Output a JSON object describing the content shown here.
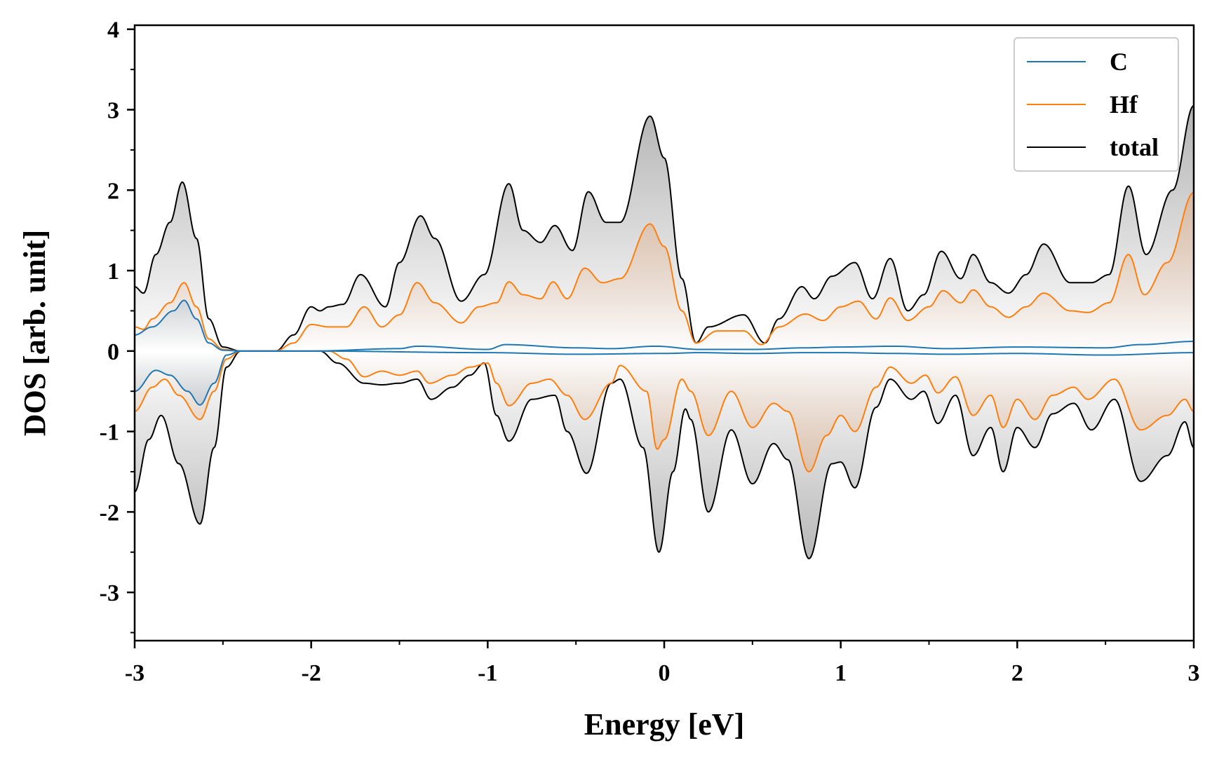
{
  "chart_data": {
    "type": "line",
    "xlabel": "Energy [eV]",
    "ylabel": "DOS [arb. unit]",
    "xlim": [
      -3,
      3
    ],
    "ylim": [
      -3.6,
      4.05
    ],
    "xticks": [
      -3,
      -2,
      -1,
      0,
      1,
      2,
      3
    ],
    "xtick_labels": [
      "-3",
      "-2",
      "-1",
      "0",
      "1",
      "2",
      "3"
    ],
    "yticks": [
      -3,
      -2,
      -1,
      0,
      1,
      2,
      3,
      4
    ],
    "ytick_labels": [
      "-3",
      "-2",
      "-1",
      "0",
      "1",
      "2",
      "3",
      "4"
    ],
    "grid": false,
    "legend_position": "top-right",
    "legend": [
      "C",
      "Hf",
      "total"
    ],
    "series": [
      {
        "name": "C",
        "color": "#1f77b4",
        "fill_color": "#1f77b4",
        "up": [
          [
            -3.0,
            0.2
          ],
          [
            -2.9,
            0.3
          ],
          [
            -2.78,
            0.5
          ],
          [
            -2.72,
            0.63
          ],
          [
            -2.65,
            0.4
          ],
          [
            -2.58,
            0.1
          ],
          [
            -2.5,
            0.01
          ],
          [
            -2.4,
            0.0
          ],
          [
            -2.0,
            0.0
          ],
          [
            -1.5,
            0.03
          ],
          [
            -1.4,
            0.06
          ],
          [
            -1.0,
            0.02
          ],
          [
            -0.9,
            0.08
          ],
          [
            -0.5,
            0.04
          ],
          [
            -0.3,
            0.03
          ],
          [
            -0.05,
            0.06
          ],
          [
            0.2,
            0.02
          ],
          [
            0.5,
            0.02
          ],
          [
            0.8,
            0.04
          ],
          [
            1.0,
            0.05
          ],
          [
            1.3,
            0.06
          ],
          [
            1.6,
            0.03
          ],
          [
            2.0,
            0.05
          ],
          [
            2.5,
            0.04
          ],
          [
            2.7,
            0.08
          ],
          [
            3.0,
            0.12
          ]
        ],
        "down": [
          [
            -3.0,
            -0.5
          ],
          [
            -2.88,
            -0.24
          ],
          [
            -2.8,
            -0.3
          ],
          [
            -2.7,
            -0.5
          ],
          [
            -2.63,
            -0.67
          ],
          [
            -2.55,
            -0.4
          ],
          [
            -2.48,
            -0.05
          ],
          [
            -2.4,
            0.0
          ],
          [
            -2.0,
            0.0
          ],
          [
            -1.0,
            -0.02
          ],
          [
            -0.5,
            -0.04
          ],
          [
            0.0,
            -0.03
          ],
          [
            0.2,
            -0.02
          ],
          [
            0.5,
            -0.03
          ],
          [
            0.8,
            -0.02
          ],
          [
            1.0,
            -0.02
          ],
          [
            1.3,
            -0.03
          ],
          [
            1.6,
            -0.04
          ],
          [
            2.0,
            -0.03
          ],
          [
            2.5,
            -0.05
          ],
          [
            3.0,
            -0.02
          ]
        ]
      },
      {
        "name": "Hf",
        "color": "#ff7f0e",
        "fill_color": "#e6a06b",
        "up": [
          [
            -3.0,
            0.3
          ],
          [
            -2.95,
            0.27
          ],
          [
            -2.9,
            0.4
          ],
          [
            -2.8,
            0.6
          ],
          [
            -2.72,
            0.85
          ],
          [
            -2.65,
            0.55
          ],
          [
            -2.58,
            0.15
          ],
          [
            -2.5,
            0.02
          ],
          [
            -2.4,
            0.0
          ],
          [
            -2.2,
            0.0
          ],
          [
            -2.1,
            0.1
          ],
          [
            -2.0,
            0.33
          ],
          [
            -1.9,
            0.3
          ],
          [
            -1.8,
            0.3
          ],
          [
            -1.7,
            0.55
          ],
          [
            -1.6,
            0.3
          ],
          [
            -1.5,
            0.45
          ],
          [
            -1.4,
            0.85
          ],
          [
            -1.3,
            0.6
          ],
          [
            -1.15,
            0.35
          ],
          [
            -1.05,
            0.55
          ],
          [
            -0.95,
            0.6
          ],
          [
            -0.88,
            0.86
          ],
          [
            -0.8,
            0.7
          ],
          [
            -0.7,
            0.65
          ],
          [
            -0.63,
            0.86
          ],
          [
            -0.55,
            0.65
          ],
          [
            -0.45,
            1.03
          ],
          [
            -0.35,
            0.85
          ],
          [
            -0.25,
            0.9
          ],
          [
            -0.08,
            1.58
          ],
          [
            0.0,
            1.3
          ],
          [
            0.1,
            0.5
          ],
          [
            0.18,
            0.1
          ],
          [
            0.3,
            0.25
          ],
          [
            0.45,
            0.25
          ],
          [
            0.55,
            0.08
          ],
          [
            0.65,
            0.3
          ],
          [
            0.8,
            0.46
          ],
          [
            0.9,
            0.38
          ],
          [
            1.0,
            0.55
          ],
          [
            1.1,
            0.62
          ],
          [
            1.2,
            0.4
          ],
          [
            1.28,
            0.66
          ],
          [
            1.38,
            0.38
          ],
          [
            1.5,
            0.55
          ],
          [
            1.58,
            0.75
          ],
          [
            1.68,
            0.6
          ],
          [
            1.75,
            0.76
          ],
          [
            1.85,
            0.55
          ],
          [
            1.95,
            0.42
          ],
          [
            2.05,
            0.55
          ],
          [
            2.15,
            0.72
          ],
          [
            2.3,
            0.5
          ],
          [
            2.4,
            0.48
          ],
          [
            2.52,
            0.6
          ],
          [
            2.63,
            1.2
          ],
          [
            2.72,
            0.7
          ],
          [
            2.85,
            1.1
          ],
          [
            3.0,
            1.97
          ]
        ],
        "down": [
          [
            -3.0,
            -0.75
          ],
          [
            -2.9,
            -0.45
          ],
          [
            -2.83,
            -0.35
          ],
          [
            -2.75,
            -0.55
          ],
          [
            -2.63,
            -0.85
          ],
          [
            -2.55,
            -0.5
          ],
          [
            -2.48,
            -0.1
          ],
          [
            -2.4,
            0.0
          ],
          [
            -1.9,
            0.0
          ],
          [
            -1.8,
            -0.1
          ],
          [
            -1.7,
            -0.32
          ],
          [
            -1.6,
            -0.25
          ],
          [
            -1.5,
            -0.3
          ],
          [
            -1.4,
            -0.25
          ],
          [
            -1.33,
            -0.4
          ],
          [
            -1.2,
            -0.3
          ],
          [
            -1.1,
            -0.2
          ],
          [
            -1.0,
            -0.15
          ],
          [
            -0.95,
            -0.4
          ],
          [
            -0.88,
            -0.68
          ],
          [
            -0.75,
            -0.4
          ],
          [
            -0.65,
            -0.35
          ],
          [
            -0.55,
            -0.55
          ],
          [
            -0.45,
            -0.85
          ],
          [
            -0.3,
            -0.4
          ],
          [
            -0.25,
            -0.18
          ],
          [
            -0.1,
            -0.5
          ],
          [
            -0.04,
            -1.22
          ],
          [
            0.0,
            -1.1
          ],
          [
            0.1,
            -0.35
          ],
          [
            0.15,
            -0.5
          ],
          [
            0.25,
            -1.05
          ],
          [
            0.38,
            -0.5
          ],
          [
            0.5,
            -0.95
          ],
          [
            0.62,
            -0.65
          ],
          [
            0.7,
            -0.75
          ],
          [
            0.82,
            -1.5
          ],
          [
            0.92,
            -1.05
          ],
          [
            1.0,
            -0.8
          ],
          [
            1.08,
            -1.0
          ],
          [
            1.2,
            -0.45
          ],
          [
            1.28,
            -0.2
          ],
          [
            1.4,
            -0.4
          ],
          [
            1.48,
            -0.3
          ],
          [
            1.55,
            -0.52
          ],
          [
            1.65,
            -0.32
          ],
          [
            1.75,
            -0.8
          ],
          [
            1.85,
            -0.55
          ],
          [
            1.92,
            -0.95
          ],
          [
            2.0,
            -0.6
          ],
          [
            2.1,
            -0.85
          ],
          [
            2.2,
            -0.55
          ],
          [
            2.32,
            -0.45
          ],
          [
            2.4,
            -0.6
          ],
          [
            2.55,
            -0.35
          ],
          [
            2.7,
            -0.98
          ],
          [
            2.85,
            -0.8
          ],
          [
            2.95,
            -0.6
          ],
          [
            3.0,
            -0.75
          ]
        ]
      },
      {
        "name": "total",
        "color": "#000000",
        "fill_color": "#8f8f8f",
        "up": [
          [
            -3.0,
            0.8
          ],
          [
            -2.95,
            0.72
          ],
          [
            -2.88,
            1.2
          ],
          [
            -2.8,
            1.6
          ],
          [
            -2.73,
            2.1
          ],
          [
            -2.65,
            1.4
          ],
          [
            -2.58,
            0.4
          ],
          [
            -2.5,
            0.05
          ],
          [
            -2.4,
            0.0
          ],
          [
            -2.2,
            0.0
          ],
          [
            -2.1,
            0.2
          ],
          [
            -2.0,
            0.55
          ],
          [
            -1.95,
            0.5
          ],
          [
            -1.9,
            0.55
          ],
          [
            -1.82,
            0.58
          ],
          [
            -1.72,
            0.95
          ],
          [
            -1.58,
            0.55
          ],
          [
            -1.5,
            1.1
          ],
          [
            -1.38,
            1.68
          ],
          [
            -1.3,
            1.4
          ],
          [
            -1.15,
            0.62
          ],
          [
            -1.02,
            0.95
          ],
          [
            -0.88,
            2.08
          ],
          [
            -0.8,
            1.5
          ],
          [
            -0.7,
            1.35
          ],
          [
            -0.62,
            1.56
          ],
          [
            -0.52,
            1.25
          ],
          [
            -0.43,
            1.98
          ],
          [
            -0.33,
            1.6
          ],
          [
            -0.25,
            1.6
          ],
          [
            -0.08,
            2.92
          ],
          [
            0.0,
            2.4
          ],
          [
            0.1,
            0.9
          ],
          [
            0.18,
            0.1
          ],
          [
            0.25,
            0.3
          ],
          [
            0.45,
            0.45
          ],
          [
            0.57,
            0.1
          ],
          [
            0.65,
            0.4
          ],
          [
            0.78,
            0.8
          ],
          [
            0.85,
            0.65
          ],
          [
            0.95,
            0.93
          ],
          [
            1.08,
            1.1
          ],
          [
            1.18,
            0.65
          ],
          [
            1.28,
            1.15
          ],
          [
            1.38,
            0.5
          ],
          [
            1.47,
            0.7
          ],
          [
            1.57,
            1.24
          ],
          [
            1.68,
            0.9
          ],
          [
            1.75,
            1.2
          ],
          [
            1.85,
            0.85
          ],
          [
            1.95,
            0.72
          ],
          [
            2.05,
            0.95
          ],
          [
            2.15,
            1.33
          ],
          [
            2.3,
            0.85
          ],
          [
            2.42,
            0.85
          ],
          [
            2.52,
            0.95
          ],
          [
            2.63,
            2.05
          ],
          [
            2.73,
            1.2
          ],
          [
            2.88,
            2.0
          ],
          [
            3.0,
            3.05
          ]
        ],
        "down": [
          [
            -3.0,
            -1.75
          ],
          [
            -2.92,
            -1.1
          ],
          [
            -2.85,
            -0.8
          ],
          [
            -2.75,
            -1.4
          ],
          [
            -2.63,
            -2.15
          ],
          [
            -2.55,
            -1.2
          ],
          [
            -2.48,
            -0.2
          ],
          [
            -2.4,
            0.0
          ],
          [
            -1.95,
            0.0
          ],
          [
            -1.85,
            -0.15
          ],
          [
            -1.7,
            -0.4
          ],
          [
            -1.6,
            -0.42
          ],
          [
            -1.5,
            -0.4
          ],
          [
            -1.4,
            -0.35
          ],
          [
            -1.32,
            -0.6
          ],
          [
            -1.2,
            -0.45
          ],
          [
            -1.1,
            -0.3
          ],
          [
            -1.02,
            -0.15
          ],
          [
            -0.95,
            -0.8
          ],
          [
            -0.88,
            -1.12
          ],
          [
            -0.75,
            -0.6
          ],
          [
            -0.62,
            -0.55
          ],
          [
            -0.55,
            -1.0
          ],
          [
            -0.44,
            -1.52
          ],
          [
            -0.3,
            -0.4
          ],
          [
            -0.25,
            -0.35
          ],
          [
            -0.12,
            -1.2
          ],
          [
            -0.03,
            -2.5
          ],
          [
            0.05,
            -1.5
          ],
          [
            0.12,
            -0.72
          ],
          [
            0.15,
            -0.85
          ],
          [
            0.25,
            -2.0
          ],
          [
            0.38,
            -0.98
          ],
          [
            0.5,
            -1.65
          ],
          [
            0.62,
            -1.15
          ],
          [
            0.7,
            -1.35
          ],
          [
            0.82,
            -2.58
          ],
          [
            0.95,
            -1.4
          ],
          [
            1.0,
            -1.38
          ],
          [
            1.08,
            -1.7
          ],
          [
            1.2,
            -0.7
          ],
          [
            1.28,
            -0.35
          ],
          [
            1.4,
            -0.6
          ],
          [
            1.47,
            -0.5
          ],
          [
            1.55,
            -0.9
          ],
          [
            1.65,
            -0.55
          ],
          [
            1.75,
            -1.3
          ],
          [
            1.85,
            -0.95
          ],
          [
            1.92,
            -1.5
          ],
          [
            2.0,
            -0.95
          ],
          [
            2.1,
            -1.2
          ],
          [
            2.2,
            -0.78
          ],
          [
            2.32,
            -0.65
          ],
          [
            2.42,
            -0.98
          ],
          [
            2.55,
            -0.6
          ],
          [
            2.7,
            -1.62
          ],
          [
            2.85,
            -1.3
          ],
          [
            2.95,
            -0.88
          ],
          [
            3.0,
            -1.2
          ]
        ]
      }
    ]
  }
}
